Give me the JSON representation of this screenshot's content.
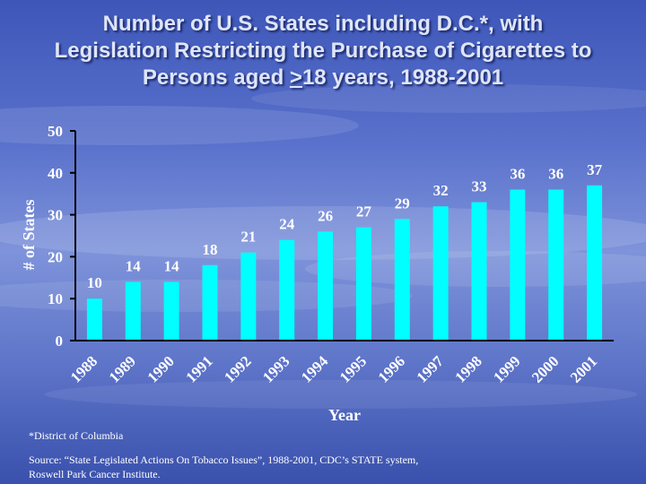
{
  "title": {
    "line1": "Number of U.S. States including D.C.*, with",
    "line2": "Legislation Restricting the Purchase of Cigarettes to",
    "line3_pre": "Persons aged ",
    "line3_u": ">",
    "line3_post": "18 years, 1988-2001"
  },
  "footnote": "*District of Columbia",
  "source": {
    "line1": "Source:  “State Legislated Actions On Tobacco Issues”, 1988-2001, CDC’s STATE system,",
    "line2": "Roswell Park Cancer Institute."
  },
  "colors": {
    "bar": "#00ffff",
    "axis": "#000000",
    "label": "#ffffff"
  },
  "chart_data": {
    "type": "bar",
    "title": "Number of U.S. States including D.C.*, with Legislation Restricting the Purchase of Cigarettes to Persons aged >18 years, 1988-2001",
    "xlabel": "Year",
    "ylabel": "# of States",
    "categories": [
      "1988",
      "1989",
      "1990",
      "1991",
      "1992",
      "1993",
      "1994",
      "1995",
      "1996",
      "1997",
      "1998",
      "1999",
      "2000",
      "2001"
    ],
    "values": [
      10,
      14,
      14,
      18,
      21,
      24,
      26,
      27,
      29,
      32,
      33,
      36,
      36,
      37
    ],
    "ylim": [
      0,
      50
    ],
    "yticks": [
      0,
      10,
      20,
      30,
      40,
      50
    ],
    "grid": false
  }
}
